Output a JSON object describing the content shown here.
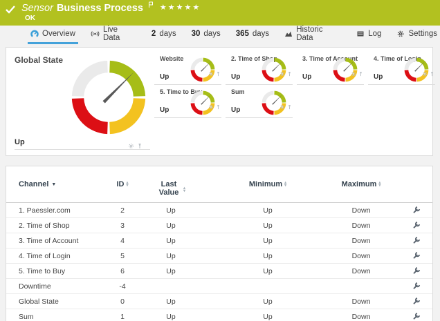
{
  "colors": {
    "header_bg": "#b2c120",
    "page_bg": "#f2f2f2",
    "accent_blue": "#44a2da",
    "card_border": "#dcdcdc",
    "gauge_green": "#a6bd17",
    "gauge_yellow": "#f3c220",
    "gauge_red": "#dc0f15",
    "gauge_gray": "#eaeaea",
    "needle": "#595959",
    "text_dark": "#3c3c3c",
    "table_header": "#33414d",
    "muted_icon": "#b9bec5",
    "wrench": "#5b6570"
  },
  "header": {
    "kind": "Sensor",
    "title": "Business Process",
    "status": "OK",
    "stars": "★★★★★"
  },
  "tabs": [
    {
      "label": "Overview",
      "active": true
    },
    {
      "label": "Live Data"
    },
    {
      "num": "2",
      "label": "days"
    },
    {
      "num": "30",
      "label": "days"
    },
    {
      "num": "365",
      "label": "days"
    },
    {
      "label": "Historic Data"
    },
    {
      "label": "Log"
    },
    {
      "label": "Settings"
    }
  ],
  "gauges": {
    "main": {
      "title": "Global State",
      "value": "Up"
    },
    "minis": [
      {
        "title": "Website",
        "value": "Up"
      },
      {
        "title": "2. Time of Shop",
        "value": "Up"
      },
      {
        "title": "3. Time of Account",
        "value": "Up"
      },
      {
        "title": "4. Time of Login",
        "value": "Up"
      },
      {
        "title": "5. Time to Buy",
        "value": "Up"
      },
      {
        "title": "Sum",
        "value": "Up"
      }
    ],
    "segments": {
      "green": "#a6bd17",
      "yellow": "#f3c220",
      "red": "#dc0f15",
      "gray": "#eaeaea"
    },
    "needle_color": "#595959",
    "needle_angle_deg": 45
  },
  "table": {
    "headers": {
      "channel": "Channel",
      "id": "ID",
      "last_value": "Last Value",
      "minimum": "Minimum",
      "maximum": "Maximum"
    },
    "sort_indicator": "▼",
    "sort_asc": "▴",
    "sort_desc": "▾",
    "rows": [
      {
        "channel": "1. Paessler.com",
        "id": "2",
        "last": "Up",
        "min": "Up",
        "max": "Down"
      },
      {
        "channel": "2. Time of Shop",
        "id": "3",
        "last": "Up",
        "min": "Up",
        "max": "Down"
      },
      {
        "channel": "3. Time of Account",
        "id": "4",
        "last": "Up",
        "min": "Up",
        "max": "Down"
      },
      {
        "channel": "4. Time of Login",
        "id": "5",
        "last": "Up",
        "min": "Up",
        "max": "Down"
      },
      {
        "channel": "5. Time to Buy",
        "id": "6",
        "last": "Up",
        "min": "Up",
        "max": "Down"
      },
      {
        "channel": "Downtime",
        "id": "-4",
        "last": "",
        "min": "",
        "max": ""
      },
      {
        "channel": "Global State",
        "id": "0",
        "last": "Up",
        "min": "Up",
        "max": "Down"
      },
      {
        "channel": "Sum",
        "id": "1",
        "last": "Up",
        "min": "Up",
        "max": "Down"
      }
    ]
  }
}
